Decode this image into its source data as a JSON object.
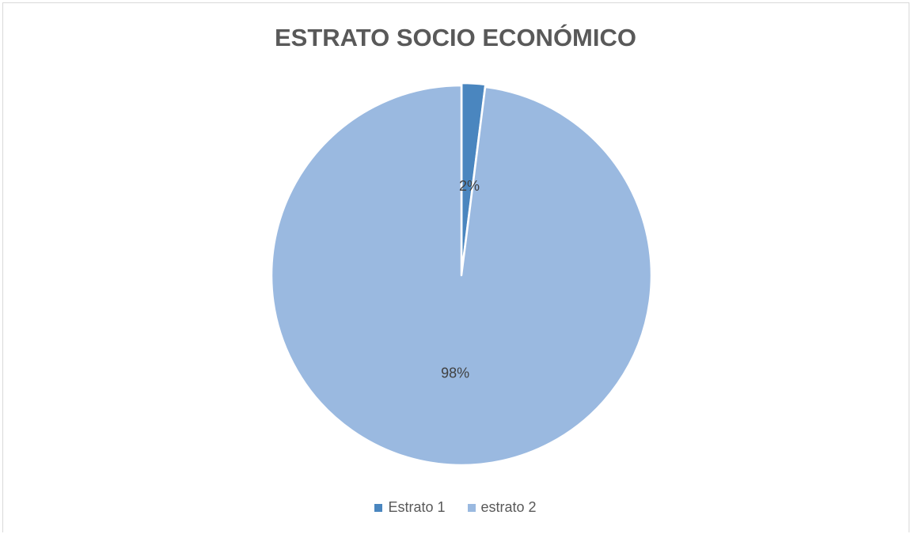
{
  "chart_data": {
    "type": "pie",
    "title": "ESTRATO SOCIO ECONÓMICO",
    "categories": [
      "Estrato 1",
      "estrato 2"
    ],
    "values": [
      2,
      98
    ],
    "data_labels": [
      "2%",
      "98%"
    ],
    "colors": [
      "#4a86bf",
      "#9ab9e0"
    ],
    "legend_position": "bottom",
    "start_angle": "top, clockwise"
  },
  "legend": {
    "items": [
      {
        "label": "Estrato 1",
        "color": "#4a86bf"
      },
      {
        "label": "estrato 2",
        "color": "#9ab9e0"
      }
    ]
  }
}
